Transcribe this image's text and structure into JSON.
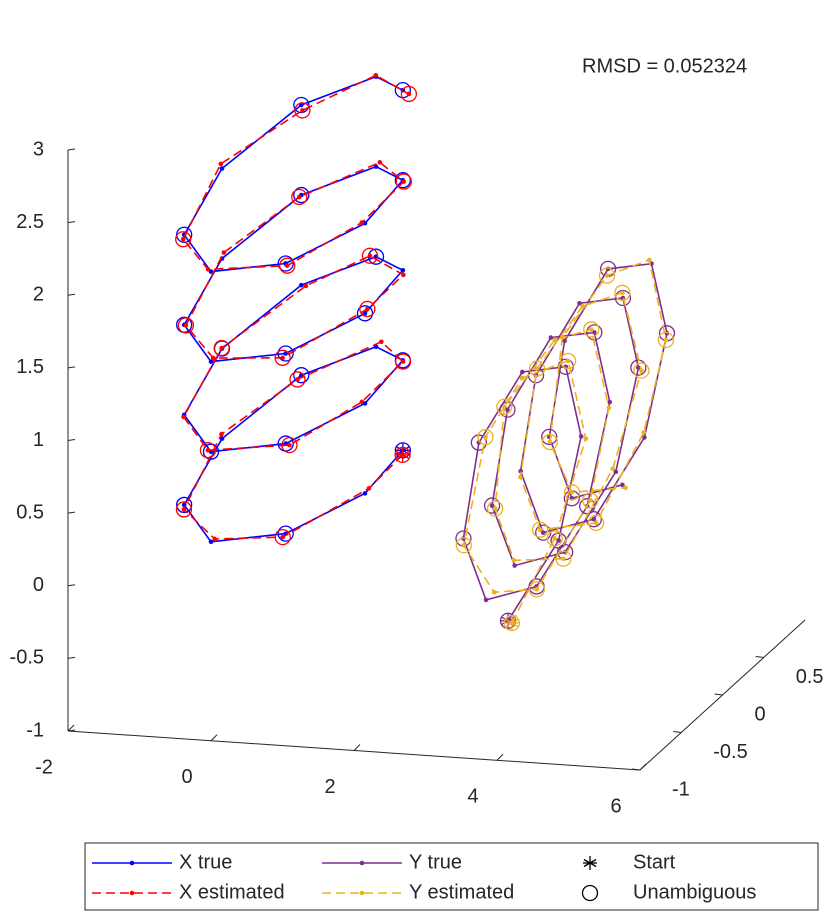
{
  "chart_data": {
    "type": "line3d",
    "annotation": "RMSD = 0.052324",
    "xlim": [
      -2,
      6
    ],
    "ylim": [
      -1,
      1
    ],
    "zlim": [
      -1,
      3
    ],
    "xticks": [
      -2,
      0,
      2,
      4,
      6
    ],
    "yticks": [
      -1,
      -0.5,
      0,
      0.5
    ],
    "zticks": [
      -1,
      -0.5,
      0,
      0.5,
      1,
      1.5,
      2,
      2.5,
      3
    ],
    "series": [
      {
        "name": "X true",
        "color": "#0000ff",
        "style": "solid",
        "x": [
          0.71,
          1,
          0.71,
          0,
          -0.71,
          -1,
          -0.71,
          0,
          0.71,
          1,
          0.71,
          0,
          -0.71,
          -1,
          -0.71,
          0,
          0.71,
          1,
          0.71,
          0,
          -0.71,
          -1,
          -0.71,
          0,
          0.71,
          1,
          0.71,
          0,
          -0.71,
          -1,
          -0.71,
          0,
          0.71
        ],
        "y": [
          0.71,
          0,
          -0.71,
          -1,
          -0.71,
          0,
          0.71,
          1,
          0.71,
          0,
          -0.71,
          -1,
          -0.71,
          0,
          0.71,
          1,
          0.71,
          0,
          -0.71,
          -1,
          -0.71,
          0,
          0.71,
          1,
          0.71,
          0,
          -0.71,
          -1,
          -0.71,
          0,
          0.71,
          1,
          0.71
        ],
        "z": [
          0.14,
          0.22,
          0.3,
          0.37,
          0.45,
          0.53,
          0.61,
          0.68,
          0.76,
          0.84,
          0.92,
          0.99,
          1.07,
          1.15,
          1.23,
          1.3,
          1.38,
          1.46,
          1.54,
          1.61,
          1.69,
          1.77,
          1.85,
          1.92,
          2,
          2.08,
          2.16,
          2.23,
          2.31,
          2.39,
          2.47,
          2.54,
          2.62
        ],
        "unambiguous": [
          true,
          false,
          true,
          false,
          true,
          false,
          true,
          false,
          true,
          false,
          true,
          true,
          false,
          true,
          false,
          true,
          false,
          true,
          true,
          false,
          true,
          false,
          true,
          false,
          true,
          false,
          true,
          false,
          true,
          false,
          true,
          false,
          true
        ]
      },
      {
        "name": "X estimated",
        "color": "#ff0000",
        "style": "dashed",
        "x": [
          0.73,
          1.02,
          0.68,
          0.03,
          -0.69,
          -1.03,
          -0.74,
          0.04,
          0.69,
          0.98,
          0.74,
          -0.02,
          -0.73,
          -0.97,
          -0.68,
          -0.05,
          0.74,
          1.01,
          0.69,
          0.02,
          -0.72,
          -1.02,
          -0.75,
          0.03,
          0.7,
          0.99,
          0.72,
          -0.03,
          -0.7,
          -1.04,
          -0.66,
          0.02,
          0.76
        ],
        "y": [
          0.69,
          0.03,
          -0.72,
          -0.98,
          -0.73,
          0.02,
          0.69,
          1.03,
          0.73,
          -0.02,
          -0.69,
          -1.02,
          -0.7,
          -0.03,
          0.74,
          0.97,
          0.69,
          0.02,
          -0.73,
          -0.99,
          -0.68,
          0.04,
          0.72,
          1.02,
          0.73,
          -0.03,
          -0.7,
          -1.01,
          -0.73,
          0.02,
          0.68,
          0.98,
          0.74
        ],
        "z": [
          0.12,
          0.24,
          0.28,
          0.38,
          0.43,
          0.55,
          0.59,
          0.7,
          0.74,
          0.86,
          0.9,
          1.01,
          1.05,
          1.17,
          1.21,
          1.32,
          1.36,
          1.48,
          1.52,
          1.63,
          1.67,
          1.79,
          1.83,
          1.94,
          1.98,
          2.1,
          2.14,
          2.25,
          2.29,
          2.41,
          2.45,
          2.56,
          2.58
        ],
        "unambiguous": [
          true,
          false,
          true,
          false,
          true,
          false,
          true,
          false,
          true,
          false,
          true,
          true,
          false,
          true,
          false,
          true,
          false,
          true,
          true,
          false,
          true,
          false,
          true,
          false,
          true,
          false,
          true,
          false,
          true,
          false,
          true,
          false,
          true
        ]
      },
      {
        "name": "Y true",
        "color": "#7e2f8e",
        "style": "solid",
        "x": [
          3,
          3.05,
          3.1,
          3.15,
          3.2,
          3.25,
          3.3,
          3.35,
          3.4,
          3.45,
          3.5,
          3.55,
          3.6,
          3.65,
          3.7,
          3.75,
          3.8,
          3.85,
          3.9,
          3.95,
          4,
          4.05,
          4.1,
          4.15,
          4.2,
          4.25,
          4.3,
          4.35,
          4.4,
          4.45,
          4.5,
          4.55,
          4.6
        ],
        "y": [
          0,
          0.57,
          0.8,
          0.57,
          0,
          -0.57,
          -0.8,
          -0.57,
          0,
          0.57,
          0.8,
          0.57,
          0,
          -0.57,
          -0.8,
          -0.57,
          0,
          0.57,
          0.8,
          0.57,
          0,
          -0.57,
          -0.8,
          -0.57,
          0,
          0.57,
          0.8,
          0.57,
          0,
          -0.57,
          -0.8,
          -0.57,
          0
        ],
        "z": [
          -0.59,
          -0.33,
          0.27,
          0.87,
          1.13,
          0.94,
          0.4,
          -0.14,
          -0.34,
          -0.08,
          0.52,
          1.12,
          1.38,
          1.18,
          0.64,
          0.11,
          -0.09,
          0.17,
          0.77,
          1.37,
          1.63,
          1.43,
          0.89,
          0.35,
          0.15,
          0.42,
          1.02,
          1.62,
          1.88,
          1.68,
          1.14,
          0.6,
          0.4
        ],
        "unambiguous": [
          true,
          true,
          false,
          true,
          false,
          true,
          true,
          false,
          true,
          true,
          false,
          true,
          false,
          true,
          true,
          false,
          true,
          false,
          true,
          true,
          false,
          true,
          false,
          true,
          true,
          false,
          true,
          false,
          true,
          false,
          true,
          true,
          false
        ]
      },
      {
        "name": "Y estimated",
        "color": "#edb120",
        "style": "dashed",
        "x": [
          3.02,
          3.03,
          3.13,
          3.16,
          3.22,
          3.32,
          3.34,
          3.43,
          3.38,
          3.47,
          3.51,
          3.53,
          3.62,
          3.63,
          3.72,
          3.73,
          3.81,
          3.83,
          3.92,
          3.93,
          4.02,
          4.03,
          4.12,
          4.13,
          4.22,
          4.23,
          4.32,
          4.33,
          4.42,
          4.43,
          4.52,
          4.53,
          4.62
        ],
        "y": [
          0.03,
          0.54,
          0.83,
          0.59,
          -0.02,
          -0.55,
          -0.83,
          -0.54,
          0.02,
          0.59,
          0.78,
          0.55,
          0.03,
          -0.59,
          -0.78,
          -0.56,
          -0.03,
          0.55,
          0.82,
          0.58,
          0.02,
          -0.54,
          -0.82,
          -0.59,
          0.01,
          0.58,
          0.77,
          0.56,
          -0.03,
          -0.58,
          -0.81,
          -0.55,
          0.02
        ],
        "z": [
          -0.62,
          -0.3,
          0.24,
          0.9,
          1.1,
          0.97,
          0.37,
          -0.1,
          -0.37,
          -0.05,
          0.49,
          1.15,
          1.35,
          1.21,
          0.61,
          0.14,
          -0.12,
          0.2,
          0.74,
          1.4,
          1.6,
          1.46,
          0.86,
          0.38,
          0.12,
          0.45,
          0.99,
          1.65,
          1.85,
          1.71,
          1.11,
          0.63,
          0.37
        ],
        "unambiguous": [
          true,
          true,
          false,
          true,
          false,
          true,
          true,
          false,
          true,
          true,
          false,
          true,
          false,
          true,
          true,
          false,
          true,
          false,
          true,
          true,
          false,
          true,
          false,
          true,
          true,
          false,
          true,
          false,
          true,
          false,
          true,
          true,
          false
        ]
      }
    ],
    "markers": [
      {
        "name": "Start",
        "symbol": "asterisk"
      },
      {
        "name": "Unambiguous",
        "symbol": "circle"
      }
    ]
  }
}
